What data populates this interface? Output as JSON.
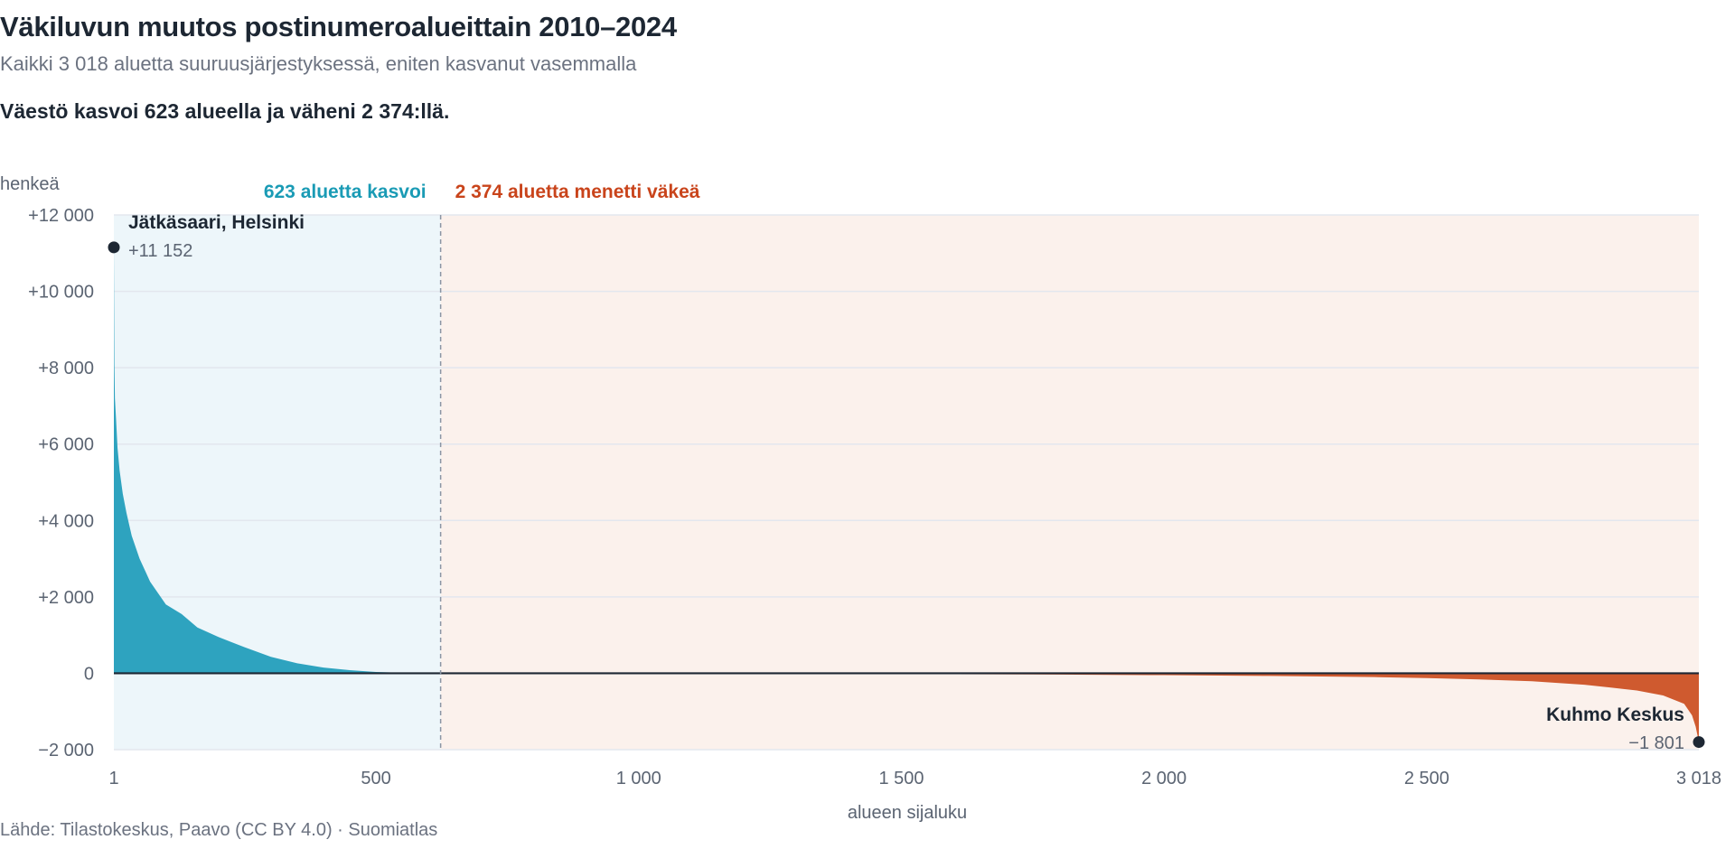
{
  "header": {
    "title": "Väkiluvun muutos postinumeroalueittain 2010–2024",
    "subtitle": "Kaikki 3 018 aluetta suuruusjärjestyksessä, eniten kasvanut vasemmalla",
    "headline": "Väestö kasvoi 623 alueella ja väheni 2 374:llä."
  },
  "footer": {
    "source": "Lähde: Tilastokeskus, Paavo (CC BY 4.0) · Suomiatlas"
  },
  "colors": {
    "growth": "#2ea3bf",
    "decline": "#cf5a2f",
    "growth_bg": "#edf6fa",
    "decline_bg": "#fbf1ec",
    "growth_label": "#1a9bb5",
    "decline_label": "#c9441b",
    "zero_line": "#1d2733",
    "divider": "#8b95a3",
    "grid": "#e3e7ee",
    "marker": "#1d2733"
  },
  "chart_data": {
    "type": "area",
    "title": "Väkiluvun muutos postinumeroalueittain 2010–2024",
    "ylabel": "henkeä",
    "xlabel": "alueen sijaluku",
    "xlim": [
      1,
      3018
    ],
    "ylim": [
      -2000,
      12000
    ],
    "grid": true,
    "x_ticks": [
      {
        "value": 1,
        "label": "1"
      },
      {
        "value": 500,
        "label": "500"
      },
      {
        "value": 1000,
        "label": "1 000"
      },
      {
        "value": 1500,
        "label": "1 500"
      },
      {
        "value": 2000,
        "label": "2 000"
      },
      {
        "value": 2500,
        "label": "2 500"
      },
      {
        "value": 3018,
        "label": "3 018"
      }
    ],
    "y_ticks": [
      {
        "value": 12000,
        "label": "+12 000"
      },
      {
        "value": 10000,
        "label": "+10 000"
      },
      {
        "value": 8000,
        "label": "+8 000"
      },
      {
        "value": 6000,
        "label": "+6 000"
      },
      {
        "value": 4000,
        "label": "+4 000"
      },
      {
        "value": 2000,
        "label": "+2 000"
      },
      {
        "value": 0,
        "label": "0"
      },
      {
        "value": -2000,
        "label": "−2 000"
      }
    ],
    "regions": [
      {
        "name": "growth",
        "label": "623 aluetta kasvoi",
        "from": 1,
        "to": 623
      },
      {
        "name": "decline",
        "label": "2 374 aluetta menetti väkeä",
        "from": 623,
        "to": 3018
      }
    ],
    "divider_rank": 623,
    "series": [
      {
        "x": [
          1,
          2,
          3,
          5,
          8,
          12,
          18,
          25,
          35,
          50,
          70,
          100,
          130,
          160,
          200,
          250,
          300,
          350,
          400,
          450,
          500,
          550,
          600,
          623
        ],
        "y": [
          11152,
          8100,
          7200,
          6700,
          5900,
          5300,
          4700,
          4200,
          3600,
          3000,
          2400,
          1800,
          1550,
          1200,
          950,
          680,
          430,
          260,
          150,
          80,
          35,
          12,
          4,
          0
        ]
      },
      {
        "x": [
          623,
          800,
          1000,
          1200,
          1500,
          1800,
          2000,
          2200,
          2400,
          2500,
          2600,
          2700,
          2800,
          2900,
          2950,
          2990,
          3005,
          3012,
          3018
        ],
        "y": [
          0,
          -2,
          -5,
          -10,
          -20,
          -35,
          -50,
          -70,
          -100,
          -125,
          -160,
          -210,
          -300,
          -450,
          -580,
          -800,
          -1100,
          -1400,
          -1801
        ]
      }
    ],
    "annotations": [
      {
        "rank": 1,
        "value": 11152,
        "name": "Jätkäsaari, Helsinki",
        "value_label": "+11 152"
      },
      {
        "rank": 3018,
        "value": -1801,
        "name": "Kuhmo Keskus",
        "value_label": "−1 801"
      }
    ]
  }
}
